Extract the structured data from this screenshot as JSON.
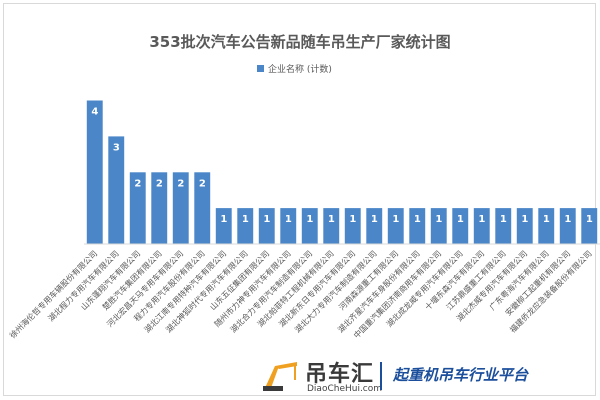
{
  "chart_data": {
    "type": "bar",
    "title": "353批次汽车公告新品随车吊生产厂家统计图",
    "legend": [
      "企业名称 (计数)"
    ],
    "legend_position": "top",
    "ylim": [
      0,
      4.6
    ],
    "grid": false,
    "series_color": "#4a86c8",
    "categories": [
      "徐州海伦哲专用车辆股份有限公司",
      "湖北程力专用汽车有限公司",
      "山东蓬翔汽车有限公司",
      "楚胜汽车集团有限公司",
      "河北宏昌天马专用车有限公司",
      "程力专用汽车股份有限公司",
      "湖北江南专用特种汽车有限公司",
      "湖北神狐时代专用汽车有限公司",
      "山东五征集团有限公司",
      "随州市力神专用汽车有限公司",
      "湖北合力专用汽车制造有限公司",
      "湖北帕菲特工程机械有限公司",
      "湖北新东日专用汽车有限公司",
      "湖北大力专用汽车制造有限公司",
      "河南森源重工有限公司",
      "湖北齐星汽车车身股份有限公司",
      "中国重汽集团济南商用车有限公司",
      "湖北成龙威专用汽车有限公司",
      "十堰东森汽车有限公司",
      "江苏鼎盛重工有限公司",
      "湖北杰威专用汽车有限公司",
      "广东粤海汽车有限公司",
      "安徽柳工起重机有限公司",
      "福建侨龙应急装备股份有限公司"
    ],
    "values": [
      4,
      3,
      2,
      2,
      2,
      2,
      1,
      1,
      1,
      1,
      1,
      1,
      1,
      1,
      1,
      1,
      1,
      1,
      1,
      1,
      1,
      1,
      1,
      1
    ]
  },
  "watermark": {
    "brand": "吊车汇",
    "url": "DiaoCheHui.com",
    "slogan": "起重机吊车行业平台"
  }
}
